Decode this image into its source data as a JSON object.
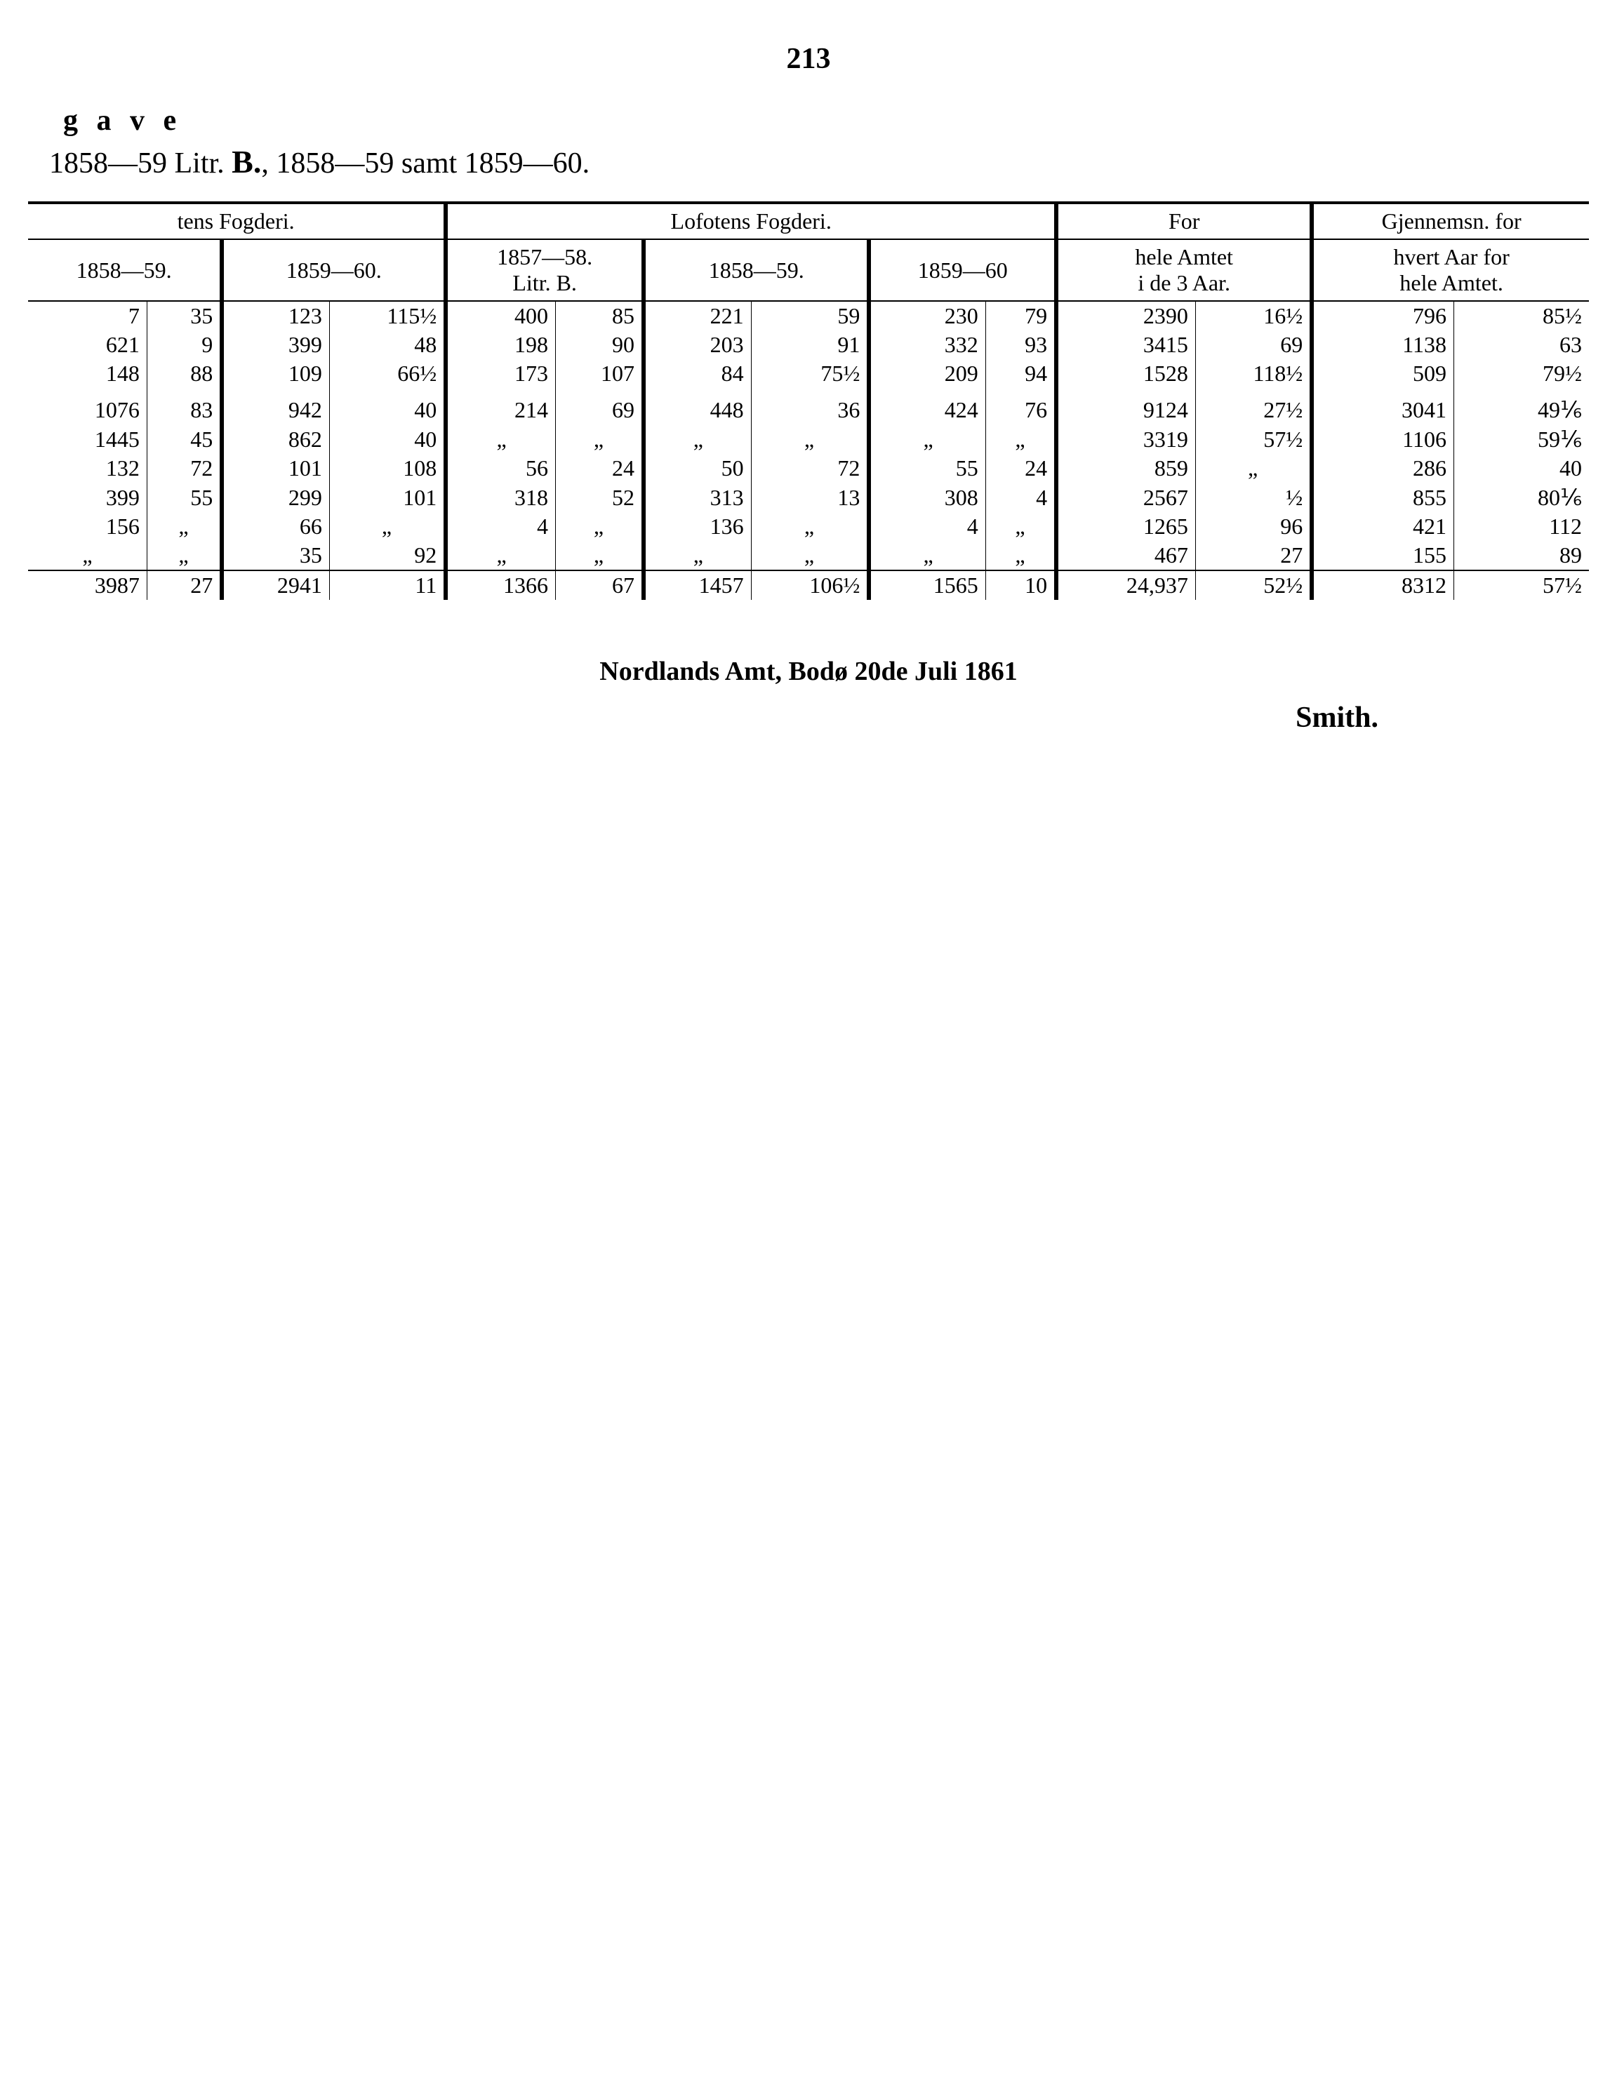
{
  "page_number": "213",
  "heading_line1": "g a v e",
  "heading_line2_a": "1858—59 Litr. ",
  "heading_line2_b": "B.",
  "heading_line2_c": ", 1858—59 samt 1859—60.",
  "headers": {
    "group1": "tens Fogderi.",
    "group2": "Lofotens Fogderi.",
    "group3": "For",
    "group4": "Gjennemsn. for",
    "sub_a": "1858—59.",
    "sub_b": "1859—60.",
    "sub_c1": "1857—58.",
    "sub_c2": "Litr. B.",
    "sub_d": "1858—59.",
    "sub_e": "1859—60",
    "sub_f1": "hele Amtet",
    "sub_f2": "i de 3 Aar.",
    "sub_g1": "hvert Aar for",
    "sub_g2": "hele Amtet."
  },
  "rows": [
    [
      "7",
      "35",
      "123",
      "115½",
      "400",
      "85",
      "221",
      "59",
      "230",
      "79",
      "2390",
      "16½",
      "796",
      "85½"
    ],
    [
      "621",
      "9",
      "399",
      "48",
      "198",
      "90",
      "203",
      "91",
      "332",
      "93",
      "3415",
      "69",
      "1138",
      "63"
    ],
    [
      "148",
      "88",
      "109",
      "66½",
      "173",
      "107",
      "84",
      "75½",
      "209",
      "94",
      "1528",
      "118½",
      "509",
      "79½"
    ],
    [
      "1076",
      "83",
      "942",
      "40",
      "214",
      "69",
      "448",
      "36",
      "424",
      "76",
      "9124",
      "27½",
      "3041",
      "49⅙"
    ],
    [
      "1445",
      "45",
      "862",
      "40",
      "„",
      "„",
      "„",
      "„",
      "„",
      "„",
      "3319",
      "57½",
      "1106",
      "59⅙"
    ],
    [
      "132",
      "72",
      "101",
      "108",
      "56",
      "24",
      "50",
      "72",
      "55",
      "24",
      "859",
      "„",
      "286",
      "40"
    ],
    [
      "399",
      "55",
      "299",
      "101",
      "318",
      "52",
      "313",
      "13",
      "308",
      "4",
      "2567",
      "½",
      "855",
      "80⅙"
    ],
    [
      "156",
      "„",
      "66",
      "„",
      "4",
      "„",
      "136",
      "„",
      "4",
      "„",
      "1265",
      "96",
      "421",
      "112"
    ],
    [
      "„",
      "„",
      "35",
      "92",
      "„",
      "„",
      "„",
      "„",
      "„",
      "„",
      "467",
      "27",
      "155",
      "89"
    ]
  ],
  "totals": [
    "3987",
    "27",
    "2941",
    "11",
    "1366",
    "67",
    "1457",
    "106½",
    "1565",
    "10",
    "24,937",
    "52½",
    "8312",
    "57½"
  ],
  "footer": "Nordlands Amt, Bodø 20de Juli 1861",
  "signature": "Smith."
}
